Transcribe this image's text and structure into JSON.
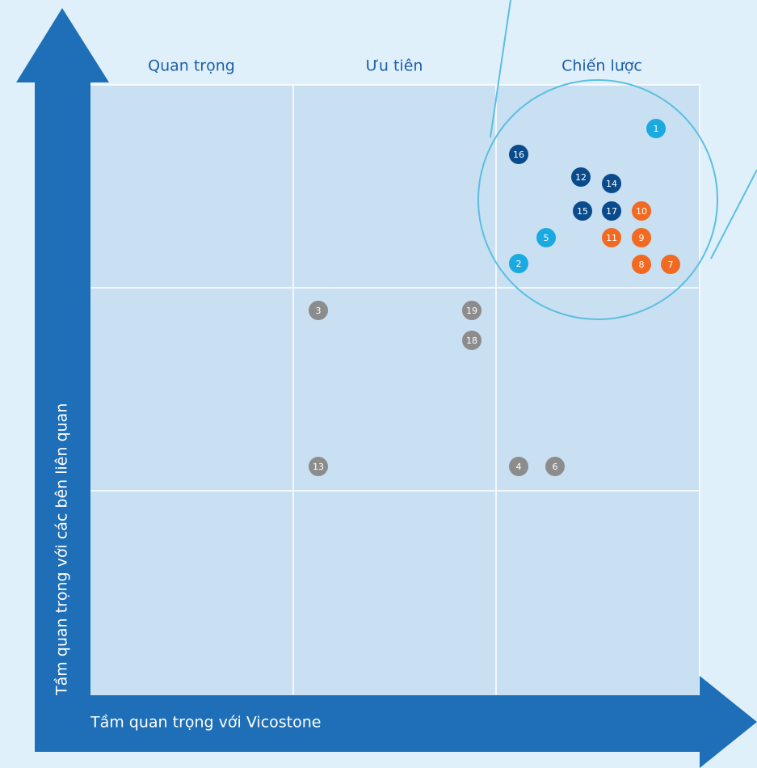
{
  "columns": [
    "Quan trọng",
    "Ưu tiên",
    "Chiến lược"
  ],
  "x_axis_label": "Tầm quan trọng với Vicostone",
  "y_axis_label": "Tầm quan trọng với các bên liên quan",
  "nodes": [
    {
      "label": "1",
      "color": "#1ba9e1"
    },
    {
      "label": "16",
      "color": "#0a4b8c"
    },
    {
      "label": "12",
      "color": "#0a4b8c"
    },
    {
      "label": "14",
      "color": "#0a4b8c"
    },
    {
      "label": "15",
      "color": "#0a4b8c"
    },
    {
      "label": "17",
      "color": "#0a4b8c"
    },
    {
      "label": "10",
      "color": "#f26a21"
    },
    {
      "label": "5",
      "color": "#1ba9e1"
    },
    {
      "label": "11",
      "color": "#f26a21"
    },
    {
      "label": "9",
      "color": "#f26a21"
    },
    {
      "label": "2",
      "color": "#1ba9e1"
    },
    {
      "label": "8",
      "color": "#f26a21"
    },
    {
      "label": "7",
      "color": "#f26a21"
    },
    {
      "label": "3",
      "color": "#8c8c8c"
    },
    {
      "label": "19",
      "color": "#8c8c8c"
    },
    {
      "label": "18",
      "color": "#8c8c8c"
    },
    {
      "label": "13",
      "color": "#8c8c8c"
    },
    {
      "label": "4",
      "color": "#8c8c8c"
    },
    {
      "label": "6",
      "color": "#8c8c8c"
    }
  ]
}
